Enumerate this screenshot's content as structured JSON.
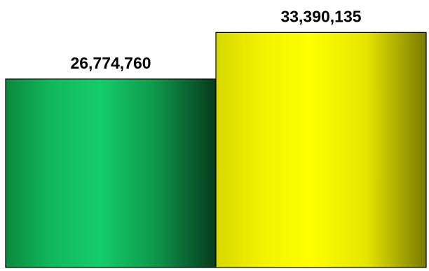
{
  "chart_data": {
    "type": "bar",
    "categories": [
      "",
      ""
    ],
    "values": [
      26774760,
      33390135
    ],
    "data_labels": [
      "26,774,760",
      "33,390,135"
    ],
    "colors": [
      "#12c765",
      "#ffff00"
    ],
    "ylim": [
      0,
      38000000
    ],
    "grid": false,
    "legend": "none",
    "title": "",
    "xlabel": "",
    "ylabel": ""
  }
}
